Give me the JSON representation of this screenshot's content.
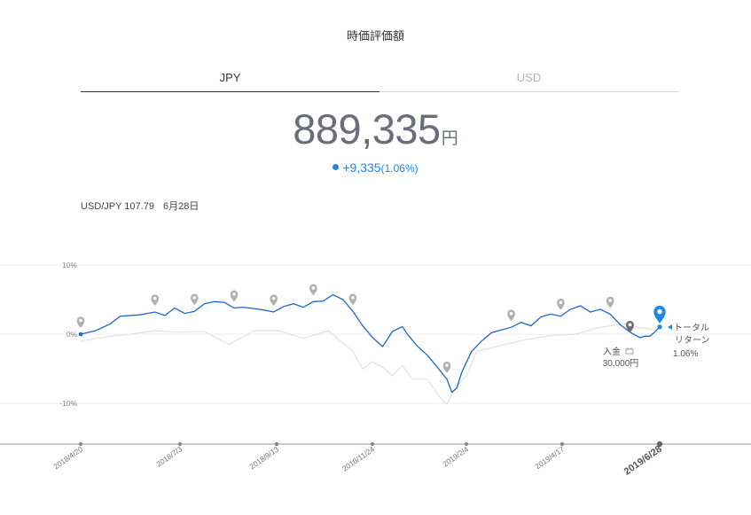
{
  "header": {
    "title": "時価評価額"
  },
  "tabs": [
    {
      "label": "JPY",
      "active": true
    },
    {
      "label": "USD",
      "active": false
    }
  ],
  "valuation": {
    "amount": "889,335",
    "unit": "円",
    "change": "+9,335",
    "change_pct": "(1.06%)"
  },
  "fx": {
    "rate": "USD/JPY 107.79",
    "date": "6月28日"
  },
  "colors": {
    "accent": "#1f87e5",
    "benchmark": "#e2e2e2",
    "marker_gray": "#b0b0b0"
  },
  "chart_data": {
    "type": "line",
    "yticks": [
      "10%",
      "0%",
      "-10%"
    ],
    "ylim": [
      -15,
      10
    ],
    "xticks": [
      "2018/4/20",
      "2018/7/3",
      "2018/9/13",
      "2018/11/24",
      "2019/2/4",
      "2019/4/17",
      "2019/6/28"
    ],
    "series": [
      {
        "role": "portfolio",
        "color": "#1f66cc",
        "points": [
          [
            0,
            0
          ],
          [
            3,
            0.5
          ],
          [
            6,
            1.5
          ],
          [
            8,
            2.6
          ],
          [
            12,
            2.8
          ],
          [
            15,
            3.2
          ],
          [
            17,
            2.7
          ],
          [
            19,
            3.8
          ],
          [
            21,
            3.0
          ],
          [
            23,
            3.3
          ],
          [
            25,
            4.4
          ],
          [
            27,
            4.7
          ],
          [
            29,
            4.6
          ],
          [
            31,
            3.8
          ],
          [
            33,
            3.9
          ],
          [
            35,
            3.7
          ],
          [
            37,
            3.5
          ],
          [
            39,
            3.2
          ],
          [
            41,
            4.0
          ],
          [
            43,
            4.4
          ],
          [
            45,
            3.9
          ],
          [
            47,
            4.7
          ],
          [
            49,
            4.8
          ],
          [
            51,
            5.7
          ],
          [
            53,
            5.0
          ],
          [
            55,
            3.3
          ],
          [
            57,
            1.2
          ],
          [
            59,
            -0.5
          ],
          [
            61,
            -1.8
          ],
          [
            63,
            0.4
          ],
          [
            65,
            1.1
          ],
          [
            66,
            0.0
          ],
          [
            68,
            -1.7
          ],
          [
            70,
            -3.0
          ],
          [
            72,
            -4.7
          ],
          [
            74,
            -6.5
          ],
          [
            75,
            -8.4
          ],
          [
            76,
            -7.8
          ],
          [
            77,
            -5.5
          ],
          [
            78,
            -4.0
          ],
          [
            79,
            -2.5
          ],
          [
            81,
            -1.0
          ],
          [
            83,
            0.2
          ],
          [
            85,
            0.6
          ],
          [
            87,
            1.0
          ],
          [
            89,
            1.7
          ],
          [
            91,
            1.2
          ],
          [
            93,
            2.5
          ],
          [
            95,
            2.9
          ],
          [
            97,
            2.6
          ],
          [
            99,
            3.6
          ],
          [
            101,
            4.1
          ],
          [
            103,
            3.2
          ],
          [
            105,
            3.6
          ],
          [
            107,
            2.9
          ],
          [
            109,
            1.4
          ],
          [
            111,
            0.3
          ],
          [
            113,
            -0.5
          ],
          [
            114,
            -0.3
          ],
          [
            115,
            -0.3
          ],
          [
            116,
            0.3
          ],
          [
            117,
            1.06
          ]
        ]
      },
      {
        "role": "benchmark",
        "color": "#e2e2e2",
        "points": [
          [
            0,
            -1.0
          ],
          [
            5,
            -0.4
          ],
          [
            10,
            0.0
          ],
          [
            15,
            0.5
          ],
          [
            20,
            0.3
          ],
          [
            25,
            0.4
          ],
          [
            30,
            -1.5
          ],
          [
            35,
            0.5
          ],
          [
            40,
            0.5
          ],
          [
            45,
            -0.6
          ],
          [
            50,
            0.5
          ],
          [
            55,
            -2.5
          ],
          [
            57,
            -5.0
          ],
          [
            59,
            -4.0
          ],
          [
            61,
            -4.8
          ],
          [
            63,
            -6.0
          ],
          [
            65,
            -4.5
          ],
          [
            67,
            -6.5
          ],
          [
            70,
            -6.5
          ],
          [
            73,
            -9.5
          ],
          [
            74,
            -10.1
          ],
          [
            76,
            -7.5
          ],
          [
            78,
            -6.0
          ],
          [
            80,
            -2.5
          ],
          [
            85,
            -1.6
          ],
          [
            90,
            -0.8
          ],
          [
            95,
            -0.2
          ],
          [
            100,
            0.0
          ],
          [
            105,
            1.0
          ],
          [
            110,
            1.5
          ],
          [
            113,
            0.9
          ],
          [
            115,
            0.8
          ],
          [
            117,
            0.2
          ]
        ]
      }
    ],
    "events": [
      {
        "label": "入金",
        "amount": "30,000円"
      }
    ],
    "end_label": {
      "line1": "トータル",
      "line2": "リターン",
      "value": "1.06%"
    },
    "grid": true
  }
}
